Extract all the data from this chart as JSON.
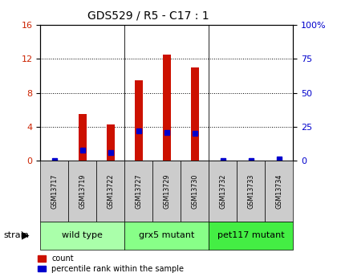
{
  "title": "GDS529 / R5 - C17 : 1",
  "samples": [
    "GSM13717",
    "GSM13719",
    "GSM13722",
    "GSM13727",
    "GSM13729",
    "GSM13730",
    "GSM13732",
    "GSM13733",
    "GSM13734"
  ],
  "counts": [
    0.0,
    5.5,
    4.3,
    9.5,
    12.5,
    11.0,
    0.0,
    0.0,
    0.0
  ],
  "percentiles": [
    0.0,
    8.0,
    6.0,
    22.0,
    21.0,
    20.0,
    0.0,
    0.0,
    1.0
  ],
  "groups": [
    {
      "label": "wild type",
      "start": 0,
      "end": 3,
      "color": "#aaffaa"
    },
    {
      "label": "grx5 mutant",
      "start": 3,
      "end": 6,
      "color": "#88ff88"
    },
    {
      "label": "pet117 mutant",
      "start": 6,
      "end": 9,
      "color": "#44ee44"
    }
  ],
  "ylim_left": [
    0,
    16
  ],
  "ylim_right": [
    0,
    100
  ],
  "yticks_left": [
    0,
    4,
    8,
    12,
    16
  ],
  "yticks_right": [
    0,
    25,
    50,
    75,
    100
  ],
  "bar_color": "#cc1100",
  "dot_color": "#0000cc",
  "bar_width": 0.3,
  "strain_label": "strain",
  "legend_count_label": "count",
  "legend_percentile_label": "percentile rank within the sample",
  "background_color": "#ffffff",
  "tick_label_color_left": "#cc2200",
  "tick_label_color_right": "#0000cc",
  "sample_box_color": "#cccccc",
  "grid_color": "#000000"
}
